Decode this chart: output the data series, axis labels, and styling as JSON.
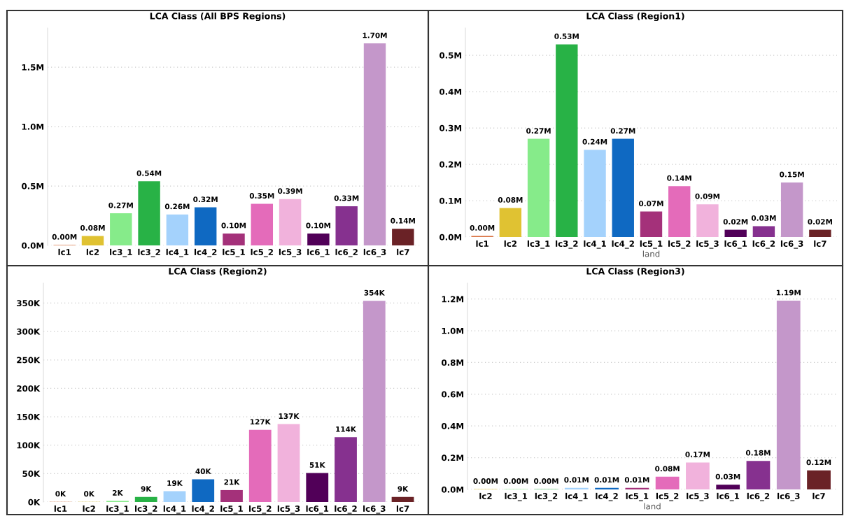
{
  "chart_data": [
    {
      "type": "bar",
      "title": "LCA Class (All BPS Regions)",
      "categories": [
        "lc1",
        "lc2",
        "lc3_1",
        "lc3_2",
        "lc4_1",
        "lc4_2",
        "lc5_1",
        "lc5_2",
        "lc5_3",
        "lc6_1",
        "lc6_2",
        "lc6_3",
        "lc7"
      ],
      "values": [
        0.004,
        0.08,
        0.27,
        0.54,
        0.26,
        0.32,
        0.1,
        0.35,
        0.39,
        0.1,
        0.33,
        1.7,
        0.14
      ],
      "value_labels": [
        "0.00M",
        "0.08M",
        "0.27M",
        "0.54M",
        "0.26M",
        "0.32M",
        "0.10M",
        "0.35M",
        "0.39M",
        "0.10M",
        "0.33M",
        "1.70M",
        "0.14M"
      ],
      "colors": [
        "#d9703f",
        "#e0c232",
        "#86eb8a",
        "#28b246",
        "#a4d2fc",
        "#0f69c2",
        "#a4317a",
        "#e46bba",
        "#f1b2dc",
        "#510058",
        "#86318f",
        "#c497ca",
        "#6a2226"
      ],
      "ylim": [
        0,
        1.83
      ],
      "yticks": [
        {
          "value": 0,
          "label": "0.0M"
        },
        {
          "value": 0.5,
          "label": "0.5M"
        },
        {
          "value": 1,
          "label": "1.0M"
        },
        {
          "value": 1.5,
          "label": "1.5M"
        }
      ],
      "grid": "y"
    },
    {
      "type": "bar",
      "title": "LCA Class (Region1)",
      "xlabel": "land",
      "categories": [
        "lc1",
        "lc2",
        "lc3_1",
        "lc3_2",
        "lc4_1",
        "lc4_2",
        "lc5_1",
        "lc5_2",
        "lc5_3",
        "lc6_1",
        "lc6_2",
        "lc6_3",
        "lc7"
      ],
      "values": [
        0.003,
        0.08,
        0.27,
        0.53,
        0.24,
        0.27,
        0.07,
        0.14,
        0.09,
        0.02,
        0.03,
        0.15,
        0.02
      ],
      "value_labels": [
        "0.00M",
        "0.08M",
        "0.27M",
        "0.53M",
        "0.24M",
        "0.27M",
        "0.07M",
        "0.14M",
        "0.09M",
        "0.02M",
        "0.03M",
        "0.15M",
        "0.02M"
      ],
      "colors": [
        "#d9703f",
        "#e0c232",
        "#86eb8a",
        "#28b246",
        "#a4d2fc",
        "#0f69c2",
        "#a4317a",
        "#e46bba",
        "#f1b2dc",
        "#510058",
        "#86318f",
        "#c497ca",
        "#6a2226"
      ],
      "ylim": [
        0,
        0.575
      ],
      "yticks": [
        {
          "value": 0,
          "label": "0.0M"
        },
        {
          "value": 0.1,
          "label": "0.1M"
        },
        {
          "value": 0.2,
          "label": "0.2M"
        },
        {
          "value": 0.3,
          "label": "0.3M"
        },
        {
          "value": 0.4,
          "label": "0.4M"
        },
        {
          "value": 0.5,
          "label": "0.5M"
        }
      ],
      "grid": "y"
    },
    {
      "type": "bar",
      "title": "LCA Class (Region2)",
      "categories": [
        "lc1",
        "lc2",
        "lc3_1",
        "lc3_2",
        "lc4_1",
        "lc4_2",
        "lc5_1",
        "lc5_2",
        "lc5_3",
        "lc6_1",
        "lc6_2",
        "lc6_3",
        "lc7"
      ],
      "values": [
        0.4,
        0.3,
        2,
        9,
        19,
        40,
        21,
        127,
        137,
        51,
        114,
        354,
        9
      ],
      "value_labels": [
        "0K",
        "0K",
        "2K",
        "9K",
        "19K",
        "40K",
        "21K",
        "127K",
        "137K",
        "51K",
        "114K",
        "354K",
        "9K"
      ],
      "colors": [
        "#d9703f",
        "#e0c232",
        "#86eb8a",
        "#28b246",
        "#a4d2fc",
        "#0f69c2",
        "#a4317a",
        "#e46bba",
        "#f1b2dc",
        "#510058",
        "#86318f",
        "#c497ca",
        "#6a2226"
      ],
      "ylim": [
        0,
        385
      ],
      "yticks": [
        {
          "value": 0,
          "label": "0K"
        },
        {
          "value": 50,
          "label": "50K"
        },
        {
          "value": 100,
          "label": "100K"
        },
        {
          "value": 150,
          "label": "150K"
        },
        {
          "value": 200,
          "label": "200K"
        },
        {
          "value": 250,
          "label": "250K"
        },
        {
          "value": 300,
          "label": "300K"
        },
        {
          "value": 350,
          "label": "350K"
        }
      ],
      "grid": "y"
    },
    {
      "type": "bar",
      "title": "LCA Class (Region3)",
      "xlabel": "land",
      "categories": [
        "lc2",
        "lc3_1",
        "lc3_2",
        "lc4_1",
        "lc4_2",
        "lc5_1",
        "lc5_2",
        "lc5_3",
        "lc6_1",
        "lc6_2",
        "lc6_3",
        "lc7"
      ],
      "values": [
        0.002,
        0.002,
        0.002,
        0.01,
        0.01,
        0.01,
        0.08,
        0.17,
        0.03,
        0.18,
        1.19,
        0.12
      ],
      "value_labels": [
        "0.00M",
        "0.00M",
        "0.00M",
        "0.01M",
        "0.01M",
        "0.01M",
        "0.08M",
        "0.17M",
        "0.03M",
        "0.18M",
        "1.19M",
        "0.12M"
      ],
      "colors": [
        "#e0c232",
        "#86eb8a",
        "#28b246",
        "#a4d2fc",
        "#0f69c2",
        "#a4317a",
        "#e46bba",
        "#f1b2dc",
        "#510058",
        "#86318f",
        "#c497ca",
        "#6a2226"
      ],
      "ylim": [
        0,
        1.3
      ],
      "yticks": [
        {
          "value": 0,
          "label": "0.0M"
        },
        {
          "value": 0.2,
          "label": "0.2M"
        },
        {
          "value": 0.4,
          "label": "0.4M"
        },
        {
          "value": 0.6,
          "label": "0.6M"
        },
        {
          "value": 0.8,
          "label": "0.8M"
        },
        {
          "value": 1,
          "label": "1.0M"
        },
        {
          "value": 1.2,
          "label": "1.2M"
        }
      ],
      "grid": "y"
    }
  ]
}
